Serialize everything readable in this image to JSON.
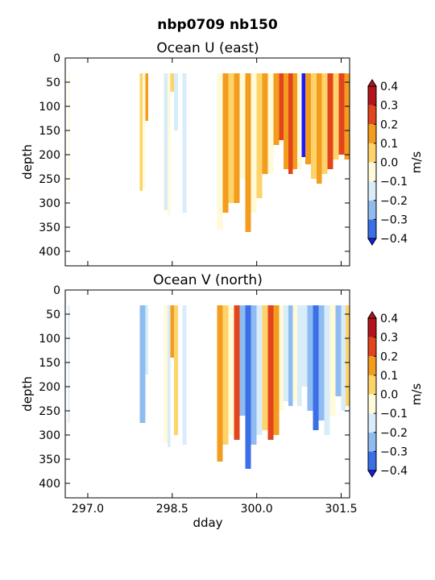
{
  "figure": {
    "suptitle": "nbp0709 nb150"
  },
  "chart_data": [
    {
      "type": "heatmap",
      "title": "Ocean U (east)",
      "xlabel": "",
      "ylabel": "depth",
      "xlim": [
        296.6,
        301.65
      ],
      "ylim": [
        430,
        0
      ],
      "xticks": [
        297.0,
        298.5,
        300.0,
        301.5
      ],
      "xticklabels": [
        "",
        "",
        "",
        ""
      ],
      "yticks": [
        0,
        50,
        100,
        150,
        200,
        250,
        300,
        350,
        400
      ],
      "yticklabels": [
        "0",
        "50",
        "100",
        "150",
        "200",
        "250",
        "300",
        "350",
        "400"
      ],
      "colorbar": {
        "label": "m/s",
        "levels": [
          -0.4,
          -0.3,
          -0.2,
          -0.1,
          0.0,
          0.1,
          0.2,
          0.3,
          0.4
        ],
        "ticklabels": [
          "0.4",
          "0.3",
          "0.2",
          "0.1",
          "0.0",
          "−0.1",
          "−0.2",
          "−0.3",
          "−0.4"
        ],
        "colors": [
          "#1a1aff",
          "#3a6fe8",
          "#8fbcf0",
          "#d8ecfa",
          "#fffad8",
          "#fdd36a",
          "#f39c1e",
          "#e2451d",
          "#b4131b"
        ]
      },
      "columns": [
        {
          "x0": 296.65,
          "x1": 296.68,
          "ybot": 275,
          "v": 0.02
        },
        {
          "x0": 297.92,
          "x1": 297.97,
          "ybot": 275,
          "v": 0.15
        },
        {
          "x0": 297.97,
          "x1": 298.02,
          "ybot": 270,
          "v": 0.05
        },
        {
          "x0": 298.02,
          "x1": 298.07,
          "ybot": 130,
          "v": 0.25
        },
        {
          "x0": 298.35,
          "x1": 298.42,
          "ybot": 315,
          "v": -0.05
        },
        {
          "x0": 298.42,
          "x1": 298.47,
          "ybot": 325,
          "v": 0.02
        },
        {
          "x0": 298.47,
          "x1": 298.53,
          "ybot": 70,
          "v": 0.12
        },
        {
          "x0": 298.53,
          "x1": 298.6,
          "ybot": 150,
          "v": -0.05
        },
        {
          "x0": 298.68,
          "x1": 298.75,
          "ybot": 320,
          "v": -0.05
        },
        {
          "x0": 299.3,
          "x1": 299.4,
          "ybot": 355,
          "v": 0.05
        },
        {
          "x0": 299.4,
          "x1": 299.5,
          "ybot": 320,
          "v": 0.2
        },
        {
          "x0": 299.5,
          "x1": 299.6,
          "ybot": 300,
          "v": 0.12
        },
        {
          "x0": 299.6,
          "x1": 299.7,
          "ybot": 300,
          "v": 0.28
        },
        {
          "x0": 299.7,
          "x1": 299.8,
          "ybot": 250,
          "v": 0.05
        },
        {
          "x0": 299.8,
          "x1": 299.9,
          "ybot": 360,
          "v": 0.22
        },
        {
          "x0": 299.9,
          "x1": 300.0,
          "ybot": 320,
          "v": 0.08
        },
        {
          "x0": 300.0,
          "x1": 300.1,
          "ybot": 290,
          "v": 0.18
        },
        {
          "x0": 300.1,
          "x1": 300.2,
          "ybot": 240,
          "v": 0.25
        },
        {
          "x0": 300.2,
          "x1": 300.3,
          "ybot": 240,
          "v": 0.08
        },
        {
          "x0": 300.3,
          "x1": 300.4,
          "ybot": 180,
          "v": 0.2
        },
        {
          "x0": 300.4,
          "x1": 300.48,
          "ybot": 170,
          "v": 0.38
        },
        {
          "x0": 300.48,
          "x1": 300.56,
          "ybot": 230,
          "v": 0.28
        },
        {
          "x0": 300.56,
          "x1": 300.64,
          "ybot": 240,
          "v": 0.33
        },
        {
          "x0": 300.64,
          "x1": 300.72,
          "ybot": 230,
          "v": 0.2
        },
        {
          "x0": 300.72,
          "x1": 300.8,
          "ybot": 230,
          "v": 0.05
        },
        {
          "x0": 300.8,
          "x1": 300.86,
          "ybot": 205,
          "v": -0.35
        },
        {
          "x0": 300.86,
          "x1": 300.96,
          "ybot": 220,
          "v": 0.22
        },
        {
          "x0": 300.96,
          "x1": 301.06,
          "ybot": 250,
          "v": 0.12
        },
        {
          "x0": 301.06,
          "x1": 301.16,
          "ybot": 260,
          "v": 0.28
        },
        {
          "x0": 301.16,
          "x1": 301.26,
          "ybot": 240,
          "v": 0.18
        },
        {
          "x0": 301.26,
          "x1": 301.36,
          "ybot": 230,
          "v": 0.35
        },
        {
          "x0": 301.36,
          "x1": 301.46,
          "ybot": 210,
          "v": 0.12
        },
        {
          "x0": 301.46,
          "x1": 301.56,
          "ybot": 200,
          "v": 0.3
        },
        {
          "x0": 301.56,
          "x1": 301.65,
          "ybot": 210,
          "v": 0.22
        }
      ]
    },
    {
      "type": "heatmap",
      "title": "Ocean V (north)",
      "xlabel": "dday",
      "ylabel": "depth",
      "xlim": [
        296.6,
        301.65
      ],
      "ylim": [
        430,
        0
      ],
      "xticks": [
        297.0,
        298.5,
        300.0,
        301.5
      ],
      "xticklabels": [
        "297.0",
        "298.5",
        "300.0",
        "301.5"
      ],
      "yticks": [
        0,
        50,
        100,
        150,
        200,
        250,
        300,
        350,
        400
      ],
      "yticklabels": [
        "0",
        "50",
        "100",
        "150",
        "200",
        "250",
        "300",
        "350",
        "400"
      ],
      "colorbar": {
        "label": "m/s",
        "levels": [
          -0.4,
          -0.3,
          -0.2,
          -0.1,
          0.0,
          0.1,
          0.2,
          0.3,
          0.4
        ],
        "ticklabels": [
          "0.4",
          "0.3",
          "0.2",
          "0.1",
          "0.0",
          "−0.1",
          "−0.2",
          "−0.3",
          "−0.4"
        ],
        "colors": [
          "#1a1aff",
          "#3a6fe8",
          "#8fbcf0",
          "#d8ecfa",
          "#fffad8",
          "#fdd36a",
          "#f39c1e",
          "#e2451d",
          "#b4131b"
        ]
      },
      "columns": [
        {
          "x0": 296.65,
          "x1": 296.68,
          "ybot": 275,
          "v": -0.05
        },
        {
          "x0": 297.92,
          "x1": 298.02,
          "ybot": 275,
          "v": -0.15
        },
        {
          "x0": 298.02,
          "x1": 298.07,
          "ybot": 175,
          "v": -0.05
        },
        {
          "x0": 298.35,
          "x1": 298.42,
          "ybot": 315,
          "v": 0.05
        },
        {
          "x0": 298.42,
          "x1": 298.47,
          "ybot": 325,
          "v": -0.05
        },
        {
          "x0": 298.47,
          "x1": 298.53,
          "ybot": 140,
          "v": 0.25
        },
        {
          "x0": 298.53,
          "x1": 298.6,
          "ybot": 300,
          "v": 0.12
        },
        {
          "x0": 298.68,
          "x1": 298.75,
          "ybot": 320,
          "v": -0.05
        },
        {
          "x0": 299.3,
          "x1": 299.4,
          "ybot": 355,
          "v": 0.22
        },
        {
          "x0": 299.4,
          "x1": 299.5,
          "ybot": 320,
          "v": 0.12
        },
        {
          "x0": 299.5,
          "x1": 299.6,
          "ybot": 300,
          "v": 0.05
        },
        {
          "x0": 299.6,
          "x1": 299.7,
          "ybot": 310,
          "v": 0.35
        },
        {
          "x0": 299.7,
          "x1": 299.8,
          "ybot": 260,
          "v": -0.12
        },
        {
          "x0": 299.8,
          "x1": 299.9,
          "ybot": 370,
          "v": -0.28
        },
        {
          "x0": 299.9,
          "x1": 300.0,
          "ybot": 320,
          "v": -0.18
        },
        {
          "x0": 300.0,
          "x1": 300.1,
          "ybot": 300,
          "v": -0.05
        },
        {
          "x0": 300.1,
          "x1": 300.2,
          "ybot": 290,
          "v": 0.12
        },
        {
          "x0": 300.2,
          "x1": 300.3,
          "ybot": 310,
          "v": 0.35
        },
        {
          "x0": 300.3,
          "x1": 300.4,
          "ybot": 300,
          "v": 0.28
        },
        {
          "x0": 300.4,
          "x1": 300.48,
          "ybot": 250,
          "v": 0.05
        },
        {
          "x0": 300.48,
          "x1": 300.56,
          "ybot": 230,
          "v": -0.05
        },
        {
          "x0": 300.56,
          "x1": 300.64,
          "ybot": 240,
          "v": -0.15
        },
        {
          "x0": 300.64,
          "x1": 300.72,
          "ybot": 230,
          "v": 0.05
        },
        {
          "x0": 300.72,
          "x1": 300.8,
          "ybot": 240,
          "v": -0.1
        },
        {
          "x0": 300.8,
          "x1": 300.9,
          "ybot": 200,
          "v": -0.05
        },
        {
          "x0": 300.9,
          "x1": 301.0,
          "ybot": 250,
          "v": -0.2
        },
        {
          "x0": 301.0,
          "x1": 301.1,
          "ybot": 290,
          "v": -0.28
        },
        {
          "x0": 301.1,
          "x1": 301.2,
          "ybot": 270,
          "v": -0.12
        },
        {
          "x0": 301.2,
          "x1": 301.3,
          "ybot": 300,
          "v": -0.05
        },
        {
          "x0": 301.3,
          "x1": 301.4,
          "ybot": 260,
          "v": 0.05
        },
        {
          "x0": 301.4,
          "x1": 301.5,
          "ybot": 220,
          "v": -0.12
        },
        {
          "x0": 301.5,
          "x1": 301.58,
          "ybot": 250,
          "v": -0.05
        },
        {
          "x0": 301.58,
          "x1": 301.65,
          "ybot": 240,
          "v": 0.12
        }
      ]
    }
  ]
}
